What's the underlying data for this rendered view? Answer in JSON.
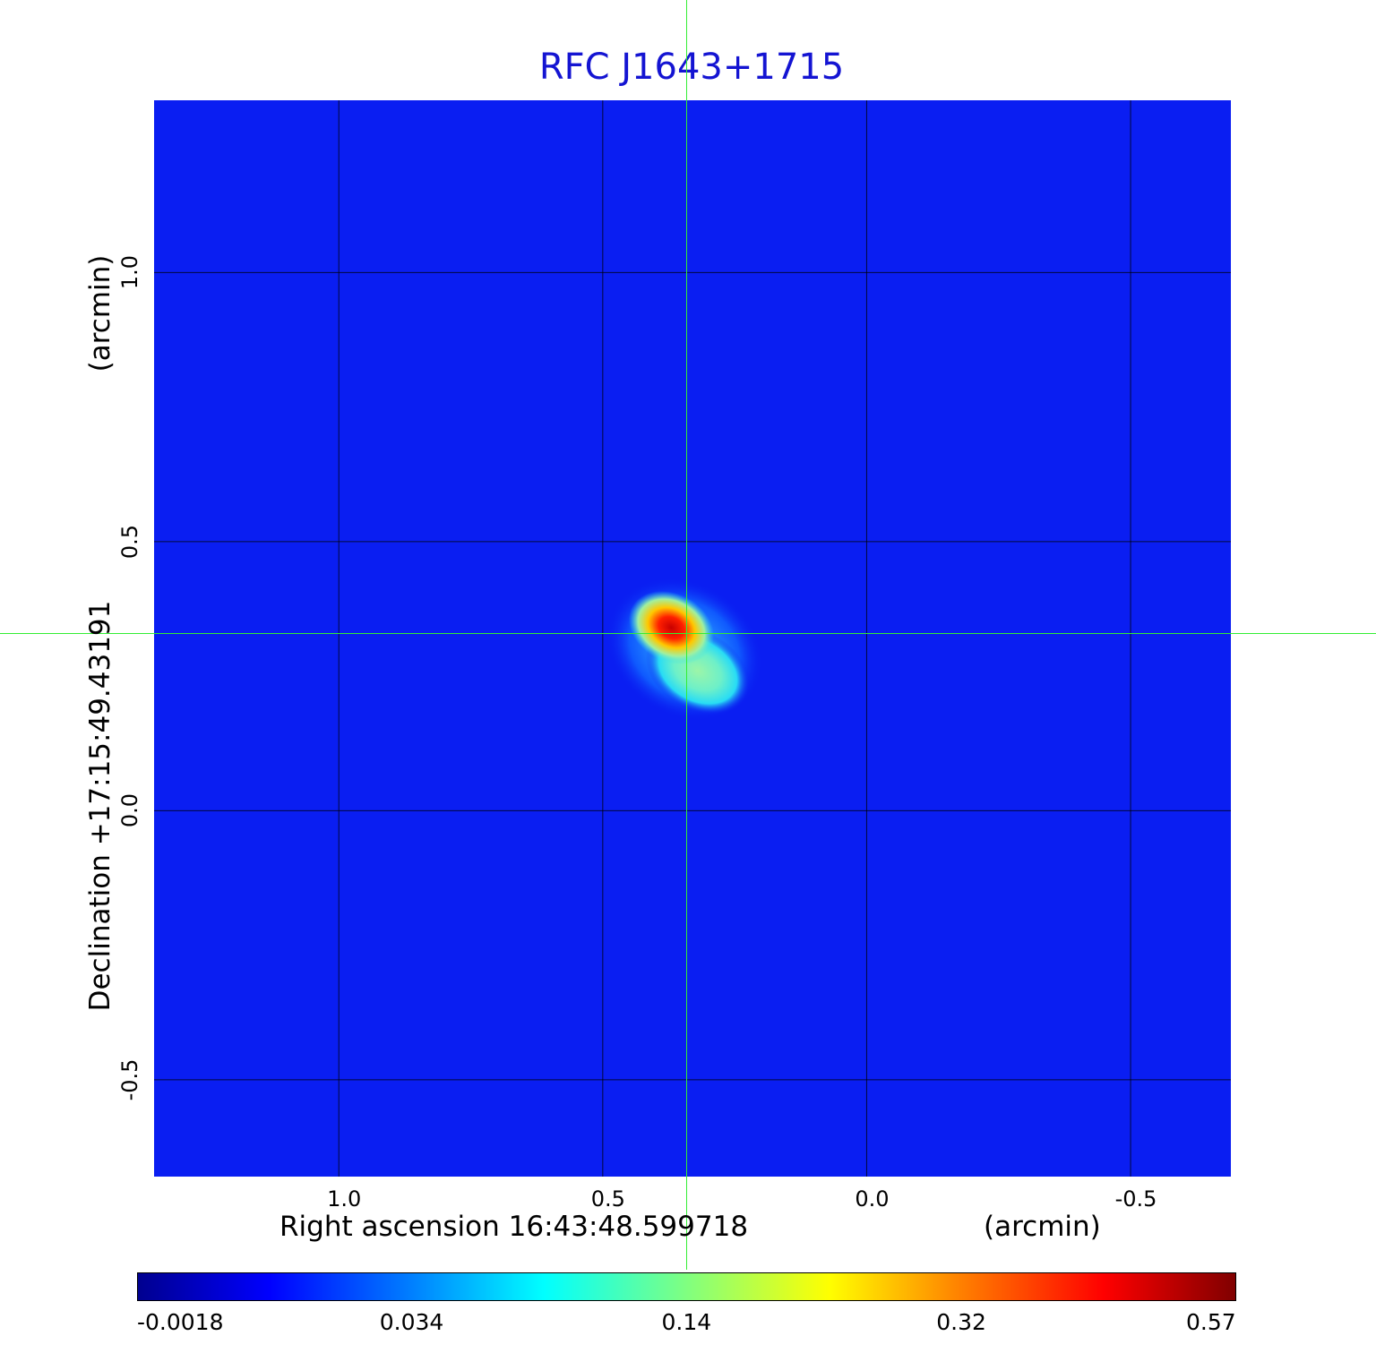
{
  "chart_data": {
    "type": "heatmap",
    "title": "RFC J1643+1715",
    "xlabel": "Right ascension  16:43:48.599718",
    "xunit": "(arcmin)",
    "ylabel": "Declination  +17:15:49.43191",
    "yunit": "(arcmin)",
    "x_ticks": [
      "1.0",
      "0.5",
      "0.0",
      "-0.5"
    ],
    "y_ticks": [
      "1.0",
      "0.5",
      "0.0",
      "-0.5"
    ],
    "xlim": [
      1.35,
      -0.69
    ],
    "ylim": [
      -0.68,
      1.32
    ],
    "grid": true,
    "colormap": "jet",
    "colorbar": {
      "ticks": [
        "-0.0018",
        "0.034",
        "0.14",
        "0.32",
        "0.57"
      ],
      "range": [
        -0.0018,
        0.57
      ]
    },
    "source": {
      "peak_value": 0.57,
      "peak_x": 0.37,
      "peak_y": 0.34,
      "extension_x": 0.32,
      "extension_y": 0.26
    },
    "crosshair": {
      "x": 0.32,
      "y": 0.33,
      "color": "#33ee33"
    },
    "colors": {
      "title": "#1414d2",
      "background_map": "#0a1ef2",
      "grid": "#000000"
    }
  }
}
